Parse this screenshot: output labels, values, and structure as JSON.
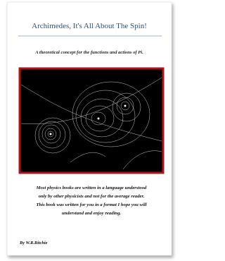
{
  "cover": {
    "title": "Archimedes, It's All About The Spin!",
    "subtitle": "A theoretical concept for the functions and actions of Pi.",
    "blurb": [
      "Most physics books are written in a language understood",
      "only by other physicists and not for the average reader.",
      "This book was written for you in a format I hope you will",
      "understand and enjoy reading."
    ],
    "author": "By W.R.Ritchie"
  }
}
